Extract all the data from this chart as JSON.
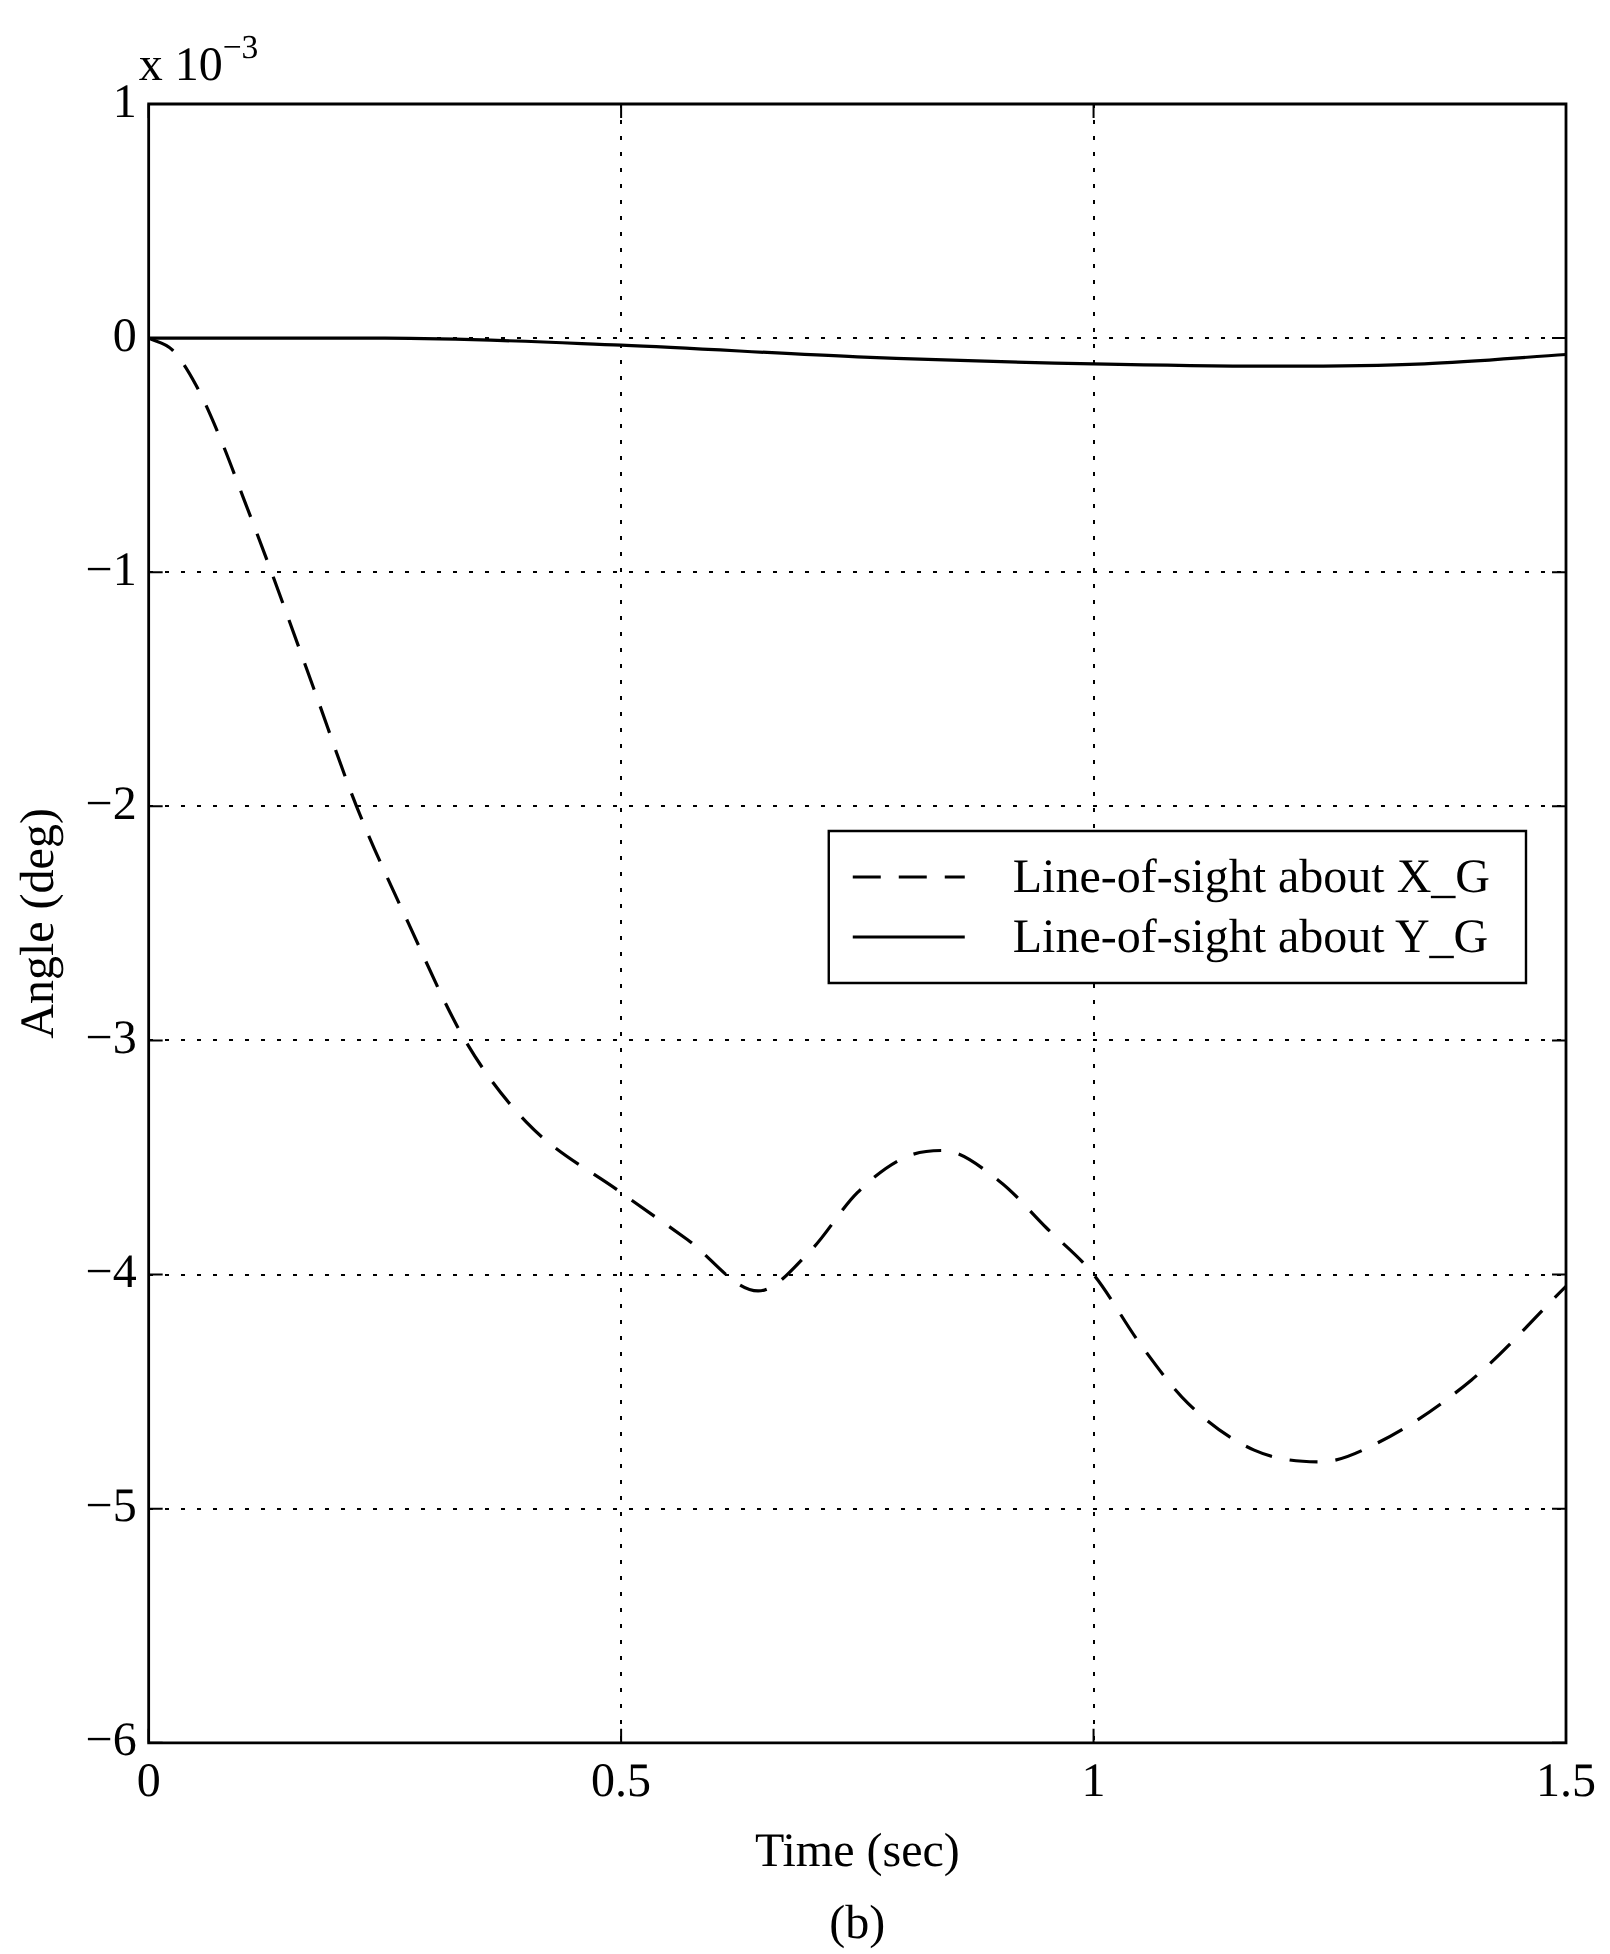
{
  "chart_data": {
    "type": "line",
    "xlabel": "Time (sec)",
    "ylabel": "Angle (deg)",
    "annotations": [
      "x 10$^{−3}$",
      "(b)"
    ],
    "xlim": [
      0,
      1.5
    ],
    "xticks": [
      0,
      0.5,
      1,
      1.5
    ],
    "ylim": [
      -6,
      1
    ],
    "yticks": [
      -6,
      -5,
      -4,
      -3,
      -2,
      -1,
      0,
      1
    ],
    "grid": true,
    "legend": "right",
    "marker": "none",
    "series": [
      {
        "name": "Line-of-sight about X_G",
        "color": "#000000",
        "line_style": "dashed",
        "x": [
          0,
          0.025,
          0.05,
          0.075,
          0.1,
          0.13,
          0.175,
          0.22,
          0.275,
          0.335,
          0.4,
          0.5,
          0.57,
          0.645,
          0.7,
          0.75,
          0.8,
          0.84,
          0.9,
          0.95,
          1.0,
          1.05,
          1.1,
          1.17,
          1.24,
          1.3,
          1.4,
          1.5
        ],
        "values": [
          0,
          -0.05,
          -0.2,
          -0.42,
          -0.68,
          -1.0,
          -1.5,
          -2.0,
          -2.5,
          -3.0,
          -3.35,
          -3.65,
          -3.85,
          -4.07,
          -3.9,
          -3.65,
          -3.5,
          -3.47,
          -3.6,
          -3.8,
          -4.0,
          -4.3,
          -4.55,
          -4.75,
          -4.8,
          -4.72,
          -4.45,
          -4.05
        ]
      },
      {
        "name": "Line-of-sight about Y_G",
        "color": "#000000",
        "line_style": "solid",
        "x": [
          0,
          0.25,
          0.5,
          0.75,
          1.0,
          1.2,
          1.35,
          1.5
        ],
        "values": [
          0,
          0,
          -0.03,
          -0.08,
          -0.11,
          -0.12,
          -0.11,
          -0.07
        ]
      }
    ]
  }
}
